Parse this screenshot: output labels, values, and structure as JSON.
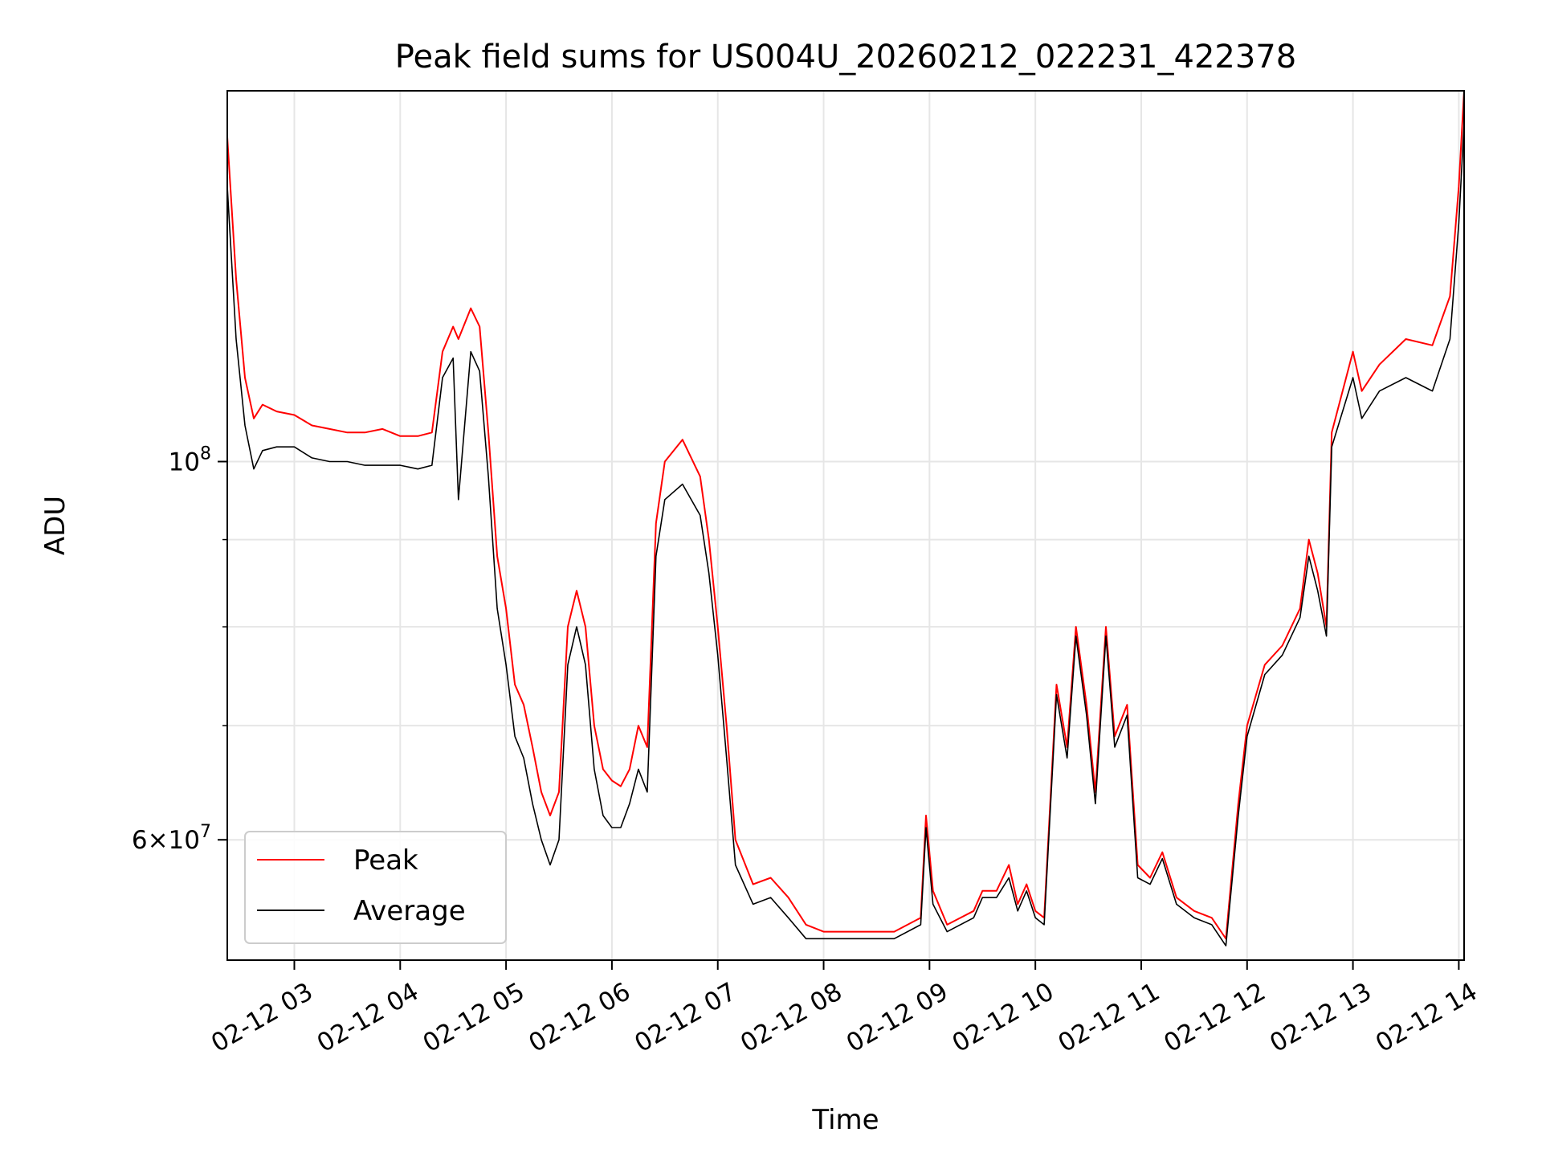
{
  "chart_data": {
    "type": "line",
    "title": "Peak field sums for US004U_20260212_022231_422378",
    "xlabel": "Time",
    "ylabel": "ADU",
    "y_scale": "log",
    "xlim": [
      "2026-02-12 02:22",
      "2026-02-12 14:03"
    ],
    "ylim": [
      51000000,
      165000000
    ],
    "x_ticks": [
      {
        "value": "2026-02-12 03:00",
        "label": "02-12 03"
      },
      {
        "value": "2026-02-12 04:00",
        "label": "02-12 04"
      },
      {
        "value": "2026-02-12 05:00",
        "label": "02-12 05"
      },
      {
        "value": "2026-02-12 06:00",
        "label": "02-12 06"
      },
      {
        "value": "2026-02-12 07:00",
        "label": "02-12 07"
      },
      {
        "value": "2026-02-12 08:00",
        "label": "02-12 08"
      },
      {
        "value": "2026-02-12 09:00",
        "label": "02-12 09"
      },
      {
        "value": "2026-02-12 10:00",
        "label": "02-12 10"
      },
      {
        "value": "2026-02-12 11:00",
        "label": "02-12 11"
      },
      {
        "value": "2026-02-12 12:00",
        "label": "02-12 12"
      },
      {
        "value": "2026-02-12 13:00",
        "label": "02-12 13"
      },
      {
        "value": "2026-02-12 14:00",
        "label": "02-12 14"
      }
    ],
    "y_major_ticks": [
      {
        "value": 60000000,
        "mantissa": "6",
        "base": "10",
        "exp": "7"
      },
      {
        "value": 100000000,
        "mantissa": "",
        "base": "10",
        "exp": "8"
      }
    ],
    "y_minor_ticks": [
      70000000,
      80000000,
      90000000
    ],
    "grid": true,
    "legend_position": "lower-left",
    "series": [
      {
        "name": "Peak",
        "color": "#ff0000",
        "points": [
          [
            "2026-02-12 02:22",
            155000000
          ],
          [
            "2026-02-12 02:27",
            128000000
          ],
          [
            "2026-02-12 02:32",
            112000000
          ],
          [
            "2026-02-12 02:37",
            106000000
          ],
          [
            "2026-02-12 02:42",
            108000000
          ],
          [
            "2026-02-12 02:50",
            107000000
          ],
          [
            "2026-02-12 03:00",
            106500000
          ],
          [
            "2026-02-12 03:10",
            105000000
          ],
          [
            "2026-02-12 03:20",
            104500000
          ],
          [
            "2026-02-12 03:30",
            104000000
          ],
          [
            "2026-02-12 03:40",
            104000000
          ],
          [
            "2026-02-12 03:50",
            104500000
          ],
          [
            "2026-02-12 04:00",
            103500000
          ],
          [
            "2026-02-12 04:10",
            103500000
          ],
          [
            "2026-02-12 04:18",
            104000000
          ],
          [
            "2026-02-12 04:24",
            116000000
          ],
          [
            "2026-02-12 04:30",
            120000000
          ],
          [
            "2026-02-12 04:33",
            118000000
          ],
          [
            "2026-02-12 04:40",
            123000000
          ],
          [
            "2026-02-12 04:45",
            120000000
          ],
          [
            "2026-02-12 04:50",
            104000000
          ],
          [
            "2026-02-12 04:55",
            88000000
          ],
          [
            "2026-02-12 05:00",
            82000000
          ],
          [
            "2026-02-12 05:05",
            74000000
          ],
          [
            "2026-02-12 05:10",
            72000000
          ],
          [
            "2026-02-12 05:15",
            68000000
          ],
          [
            "2026-02-12 05:20",
            64000000
          ],
          [
            "2026-02-12 05:25",
            62000000
          ],
          [
            "2026-02-12 05:30",
            64000000
          ],
          [
            "2026-02-12 05:35",
            80000000
          ],
          [
            "2026-02-12 05:40",
            84000000
          ],
          [
            "2026-02-12 05:45",
            80000000
          ],
          [
            "2026-02-12 05:50",
            70000000
          ],
          [
            "2026-02-12 05:55",
            66000000
          ],
          [
            "2026-02-12 06:00",
            65000000
          ],
          [
            "2026-02-12 06:05",
            64500000
          ],
          [
            "2026-02-12 06:10",
            66000000
          ],
          [
            "2026-02-12 06:15",
            70000000
          ],
          [
            "2026-02-12 06:20",
            68000000
          ],
          [
            "2026-02-12 06:25",
            92000000
          ],
          [
            "2026-02-12 06:30",
            100000000
          ],
          [
            "2026-02-12 06:40",
            103000000
          ],
          [
            "2026-02-12 06:50",
            98000000
          ],
          [
            "2026-02-12 06:55",
            90000000
          ],
          [
            "2026-02-12 07:00",
            80000000
          ],
          [
            "2026-02-12 07:05",
            70000000
          ],
          [
            "2026-02-12 07:10",
            60000000
          ],
          [
            "2026-02-12 07:20",
            56500000
          ],
          [
            "2026-02-12 07:30",
            57000000
          ],
          [
            "2026-02-12 07:40",
            55500000
          ],
          [
            "2026-02-12 07:50",
            53500000
          ],
          [
            "2026-02-12 08:00",
            53000000
          ],
          [
            "2026-02-12 08:20",
            53000000
          ],
          [
            "2026-02-12 08:40",
            53000000
          ],
          [
            "2026-02-12 08:55",
            54000000
          ],
          [
            "2026-02-12 08:58",
            62000000
          ],
          [
            "2026-02-12 09:02",
            56000000
          ],
          [
            "2026-02-12 09:10",
            53500000
          ],
          [
            "2026-02-12 09:25",
            54500000
          ],
          [
            "2026-02-12 09:30",
            56000000
          ],
          [
            "2026-02-12 09:38",
            56000000
          ],
          [
            "2026-02-12 09:45",
            58000000
          ],
          [
            "2026-02-12 09:50",
            55000000
          ],
          [
            "2026-02-12 09:55",
            56500000
          ],
          [
            "2026-02-12 10:00",
            54500000
          ],
          [
            "2026-02-12 10:05",
            54000000
          ],
          [
            "2026-02-12 10:12",
            74000000
          ],
          [
            "2026-02-12 10:18",
            68000000
          ],
          [
            "2026-02-12 10:23",
            80000000
          ],
          [
            "2026-02-12 10:29",
            72000000
          ],
          [
            "2026-02-12 10:34",
            64000000
          ],
          [
            "2026-02-12 10:40",
            80000000
          ],
          [
            "2026-02-12 10:45",
            69000000
          ],
          [
            "2026-02-12 10:52",
            72000000
          ],
          [
            "2026-02-12 10:58",
            58000000
          ],
          [
            "2026-02-12 11:05",
            57000000
          ],
          [
            "2026-02-12 11:12",
            59000000
          ],
          [
            "2026-02-12 11:20",
            55500000
          ],
          [
            "2026-02-12 11:30",
            54500000
          ],
          [
            "2026-02-12 11:40",
            54000000
          ],
          [
            "2026-02-12 11:48",
            52500000
          ],
          [
            "2026-02-12 11:55",
            63000000
          ],
          [
            "2026-02-12 12:00",
            70000000
          ],
          [
            "2026-02-12 12:10",
            76000000
          ],
          [
            "2026-02-12 12:20",
            78000000
          ],
          [
            "2026-02-12 12:30",
            82000000
          ],
          [
            "2026-02-12 12:35",
            90000000
          ],
          [
            "2026-02-12 12:40",
            86000000
          ],
          [
            "2026-02-12 12:45",
            80000000
          ],
          [
            "2026-02-12 12:48",
            104000000
          ],
          [
            "2026-02-12 13:00",
            116000000
          ],
          [
            "2026-02-12 13:05",
            110000000
          ],
          [
            "2026-02-12 13:15",
            114000000
          ],
          [
            "2026-02-12 13:30",
            118000000
          ],
          [
            "2026-02-12 13:45",
            117000000
          ],
          [
            "2026-02-12 13:55",
            125000000
          ],
          [
            "2026-02-12 14:00",
            145000000
          ],
          [
            "2026-02-12 14:03",
            165000000
          ]
        ]
      },
      {
        "name": "Average",
        "color": "#000000",
        "points": [
          [
            "2026-02-12 02:22",
            145000000
          ],
          [
            "2026-02-12 02:27",
            118000000
          ],
          [
            "2026-02-12 02:32",
            105000000
          ],
          [
            "2026-02-12 02:37",
            99000000
          ],
          [
            "2026-02-12 02:42",
            101500000
          ],
          [
            "2026-02-12 02:50",
            102000000
          ],
          [
            "2026-02-12 03:00",
            102000000
          ],
          [
            "2026-02-12 03:10",
            100500000
          ],
          [
            "2026-02-12 03:20",
            100000000
          ],
          [
            "2026-02-12 03:30",
            100000000
          ],
          [
            "2026-02-12 03:40",
            99500000
          ],
          [
            "2026-02-12 03:50",
            99500000
          ],
          [
            "2026-02-12 04:00",
            99500000
          ],
          [
            "2026-02-12 04:10",
            99000000
          ],
          [
            "2026-02-12 04:18",
            99500000
          ],
          [
            "2026-02-12 04:24",
            112000000
          ],
          [
            "2026-02-12 04:30",
            115000000
          ],
          [
            "2026-02-12 04:33",
            95000000
          ],
          [
            "2026-02-12 04:40",
            116000000
          ],
          [
            "2026-02-12 04:45",
            113000000
          ],
          [
            "2026-02-12 04:50",
            98000000
          ],
          [
            "2026-02-12 04:55",
            82000000
          ],
          [
            "2026-02-12 05:00",
            76000000
          ],
          [
            "2026-02-12 05:05",
            69000000
          ],
          [
            "2026-02-12 05:10",
            67000000
          ],
          [
            "2026-02-12 05:15",
            63000000
          ],
          [
            "2026-02-12 05:20",
            60000000
          ],
          [
            "2026-02-12 05:25",
            58000000
          ],
          [
            "2026-02-12 05:30",
            60000000
          ],
          [
            "2026-02-12 05:35",
            76000000
          ],
          [
            "2026-02-12 05:40",
            80000000
          ],
          [
            "2026-02-12 05:45",
            76000000
          ],
          [
            "2026-02-12 05:50",
            66000000
          ],
          [
            "2026-02-12 05:55",
            62000000
          ],
          [
            "2026-02-12 06:00",
            61000000
          ],
          [
            "2026-02-12 06:05",
            61000000
          ],
          [
            "2026-02-12 06:10",
            63000000
          ],
          [
            "2026-02-12 06:15",
            66000000
          ],
          [
            "2026-02-12 06:20",
            64000000
          ],
          [
            "2026-02-12 06:25",
            88000000
          ],
          [
            "2026-02-12 06:30",
            95000000
          ],
          [
            "2026-02-12 06:40",
            97000000
          ],
          [
            "2026-02-12 06:50",
            93000000
          ],
          [
            "2026-02-12 06:55",
            86000000
          ],
          [
            "2026-02-12 07:00",
            77000000
          ],
          [
            "2026-02-12 07:05",
            67000000
          ],
          [
            "2026-02-12 07:10",
            58000000
          ],
          [
            "2026-02-12 07:20",
            55000000
          ],
          [
            "2026-02-12 07:30",
            55500000
          ],
          [
            "2026-02-12 07:40",
            54000000
          ],
          [
            "2026-02-12 07:50",
            52500000
          ],
          [
            "2026-02-12 08:00",
            52500000
          ],
          [
            "2026-02-12 08:20",
            52500000
          ],
          [
            "2026-02-12 08:40",
            52500000
          ],
          [
            "2026-02-12 08:55",
            53500000
          ],
          [
            "2026-02-12 08:58",
            61000000
          ],
          [
            "2026-02-12 09:02",
            55000000
          ],
          [
            "2026-02-12 09:10",
            53000000
          ],
          [
            "2026-02-12 09:25",
            54000000
          ],
          [
            "2026-02-12 09:30",
            55500000
          ],
          [
            "2026-02-12 09:38",
            55500000
          ],
          [
            "2026-02-12 09:45",
            57000000
          ],
          [
            "2026-02-12 09:50",
            54500000
          ],
          [
            "2026-02-12 09:55",
            56000000
          ],
          [
            "2026-02-12 10:00",
            54000000
          ],
          [
            "2026-02-12 10:05",
            53500000
          ],
          [
            "2026-02-12 10:12",
            73000000
          ],
          [
            "2026-02-12 10:18",
            67000000
          ],
          [
            "2026-02-12 10:23",
            79000000
          ],
          [
            "2026-02-12 10:29",
            71000000
          ],
          [
            "2026-02-12 10:34",
            63000000
          ],
          [
            "2026-02-12 10:40",
            79000000
          ],
          [
            "2026-02-12 10:45",
            68000000
          ],
          [
            "2026-02-12 10:52",
            71000000
          ],
          [
            "2026-02-12 10:58",
            57000000
          ],
          [
            "2026-02-12 11:05",
            56500000
          ],
          [
            "2026-02-12 11:12",
            58500000
          ],
          [
            "2026-02-12 11:20",
            55000000
          ],
          [
            "2026-02-12 11:30",
            54000000
          ],
          [
            "2026-02-12 11:40",
            53500000
          ],
          [
            "2026-02-12 11:48",
            52000000
          ],
          [
            "2026-02-12 11:55",
            62000000
          ],
          [
            "2026-02-12 12:00",
            69000000
          ],
          [
            "2026-02-12 12:10",
            75000000
          ],
          [
            "2026-02-12 12:20",
            77000000
          ],
          [
            "2026-02-12 12:30",
            81000000
          ],
          [
            "2026-02-12 12:35",
            88000000
          ],
          [
            "2026-02-12 12:40",
            84000000
          ],
          [
            "2026-02-12 12:45",
            79000000
          ],
          [
            "2026-02-12 12:48",
            102000000
          ],
          [
            "2026-02-12 13:00",
            112000000
          ],
          [
            "2026-02-12 13:05",
            106000000
          ],
          [
            "2026-02-12 13:15",
            110000000
          ],
          [
            "2026-02-12 13:30",
            112000000
          ],
          [
            "2026-02-12 13:45",
            110000000
          ],
          [
            "2026-02-12 13:55",
            118000000
          ],
          [
            "2026-02-12 14:00",
            138000000
          ],
          [
            "2026-02-12 14:03",
            158000000
          ]
        ]
      }
    ]
  }
}
